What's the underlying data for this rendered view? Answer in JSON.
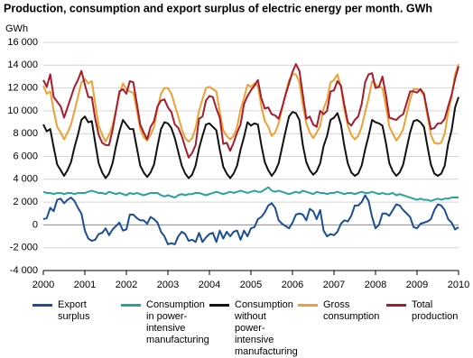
{
  "chart_data": {
    "type": "line",
    "title": "Production, consumption and export surplus of electric energy per month. GWh",
    "y_label": "GWh",
    "xlim": [
      2000,
      2010
    ],
    "xticks": [
      2000,
      2001,
      2002,
      2003,
      2004,
      2005,
      2006,
      2007,
      2008,
      2009,
      2010
    ],
    "ylim": [
      -4000,
      16000
    ],
    "yticks": [
      {
        "value": -4000,
        "label": "-4 000"
      },
      {
        "value": -2000,
        "label": "-2 000"
      },
      0,
      {
        "value": 2000,
        "label": "2 000"
      },
      {
        "value": 4000,
        "label": "4 000"
      },
      {
        "value": 6000,
        "label": "6 000"
      },
      {
        "value": 8000,
        "label": "8 000"
      },
      {
        "value": 10000,
        "label": "10 000"
      },
      {
        "value": 12000,
        "label": "12 000"
      },
      {
        "value": 14000,
        "label": "14 000"
      },
      {
        "value": 16000,
        "label": "16 000"
      }
    ],
    "grid": true,
    "x": [
      2000,
      2000.083,
      2000.167,
      2000.25,
      2000.333,
      2000.417,
      2000.5,
      2000.583,
      2000.667,
      2000.75,
      2000.833,
      2000.917,
      2001,
      2001.083,
      2001.167,
      2001.25,
      2001.333,
      2001.417,
      2001.5,
      2001.583,
      2001.667,
      2001.75,
      2001.833,
      2001.917,
      2002,
      2002.083,
      2002.167,
      2002.25,
      2002.333,
      2002.417,
      2002.5,
      2002.583,
      2002.667,
      2002.75,
      2002.833,
      2002.917,
      2003,
      2003.083,
      2003.167,
      2003.25,
      2003.333,
      2003.417,
      2003.5,
      2003.583,
      2003.667,
      2003.75,
      2003.833,
      2003.917,
      2004,
      2004.083,
      2004.167,
      2004.25,
      2004.333,
      2004.417,
      2004.5,
      2004.583,
      2004.667,
      2004.75,
      2004.833,
      2004.917,
      2005,
      2005.083,
      2005.167,
      2005.25,
      2005.333,
      2005.417,
      2005.5,
      2005.583,
      2005.667,
      2005.75,
      2005.833,
      2005.917,
      2006,
      2006.083,
      2006.167,
      2006.25,
      2006.333,
      2006.417,
      2006.5,
      2006.583,
      2006.667,
      2006.75,
      2006.833,
      2006.917,
      2007,
      2007.083,
      2007.167,
      2007.25,
      2007.333,
      2007.417,
      2007.5,
      2007.583,
      2007.667,
      2007.75,
      2007.833,
      2007.917,
      2008,
      2008.083,
      2008.167,
      2008.25,
      2008.333,
      2008.417,
      2008.5,
      2008.583,
      2008.667,
      2008.75,
      2008.833,
      2008.917,
      2009,
      2009.083,
      2009.167,
      2009.25,
      2009.333,
      2009.417,
      2009.5,
      2009.583,
      2009.667,
      2009.75,
      2009.833,
      2009.917,
      2010
    ],
    "series": [
      {
        "name": "Export surplus",
        "color": "#1a4f96",
        "values": [
          500,
          600,
          1500,
          1200,
          2200,
          2300,
          1900,
          2200,
          2400,
          2100,
          1500,
          1000,
          -500,
          -1200,
          -1400,
          -1300,
          -800,
          -700,
          -300,
          -900,
          -400,
          -100,
          200,
          -500,
          -400,
          900,
          900,
          600,
          400,
          400,
          100,
          700,
          500,
          200,
          -600,
          -1000,
          -1700,
          -1600,
          -1700,
          -1000,
          -600,
          -800,
          -1400,
          -1300,
          -1500,
          -700,
          -1500,
          -1100,
          -800,
          -700,
          -1500,
          -500,
          -1200,
          -600,
          -1000,
          -600,
          -500,
          -1300,
          -500,
          -1000,
          -300,
          -200,
          500,
          700,
          1100,
          1700,
          1900,
          1500,
          400,
          100,
          -100,
          -300,
          200,
          900,
          1000,
          900,
          400,
          1400,
          1200,
          500,
          1300,
          -500,
          -1000,
          -800,
          -900,
          -600,
          100,
          400,
          300,
          800,
          1700,
          1700,
          2000,
          2600,
          2100,
          700,
          -300,
          0,
          1000,
          1000,
          800,
          1300,
          1800,
          1700,
          1300,
          1000,
          700,
          -200,
          -300,
          100,
          200,
          300,
          500,
          1300,
          1800,
          1700,
          1300,
          500,
          200,
          -400,
          -200
        ]
      },
      {
        "name": "Consumption in power-intensive manufacturing",
        "color": "#2aa39a",
        "values": [
          2900,
          2800,
          2800,
          2700,
          2800,
          2800,
          2700,
          2800,
          2800,
          2700,
          2800,
          2800,
          2800,
          2900,
          3000,
          2900,
          2800,
          2800,
          2700,
          2900,
          2800,
          2700,
          2800,
          2700,
          2600,
          2800,
          2700,
          2800,
          2700,
          2600,
          2700,
          2800,
          2800,
          2800,
          2600,
          2500,
          2600,
          2500,
          2400,
          2600,
          2700,
          2600,
          2700,
          2700,
          2800,
          2800,
          2700,
          2600,
          2700,
          2800,
          2900,
          2800,
          2700,
          2800,
          2900,
          2800,
          2900,
          3000,
          2900,
          2800,
          2900,
          3000,
          2900,
          2900,
          3100,
          3300,
          3000,
          2900,
          3000,
          2900,
          2800,
          2700,
          2800,
          2900,
          2800,
          3000,
          2900,
          2800,
          2700,
          2900,
          2800,
          2800,
          2700,
          2800,
          2800,
          2900,
          2800,
          2700,
          2800,
          2800,
          2700,
          2800,
          2900,
          2800,
          2800,
          2900,
          2800,
          2700,
          2800,
          2700,
          2700,
          2800,
          2600,
          2700,
          2600,
          2500,
          2400,
          2300,
          2200,
          2300,
          2200,
          2200,
          2100,
          2200,
          2300,
          2200,
          2300,
          2300,
          2400,
          2400,
          2400
        ]
      },
      {
        "name": "Consumption without power-intensive manufacturing",
        "color": "#111111",
        "values": [
          8800,
          8200,
          8400,
          6800,
          5300,
          4800,
          4300,
          4800,
          5500,
          6800,
          7900,
          9200,
          9500,
          9000,
          9100,
          7200,
          5400,
          4600,
          4100,
          4500,
          5400,
          6900,
          8200,
          9200,
          8800,
          8400,
          8400,
          6800,
          5200,
          4600,
          4200,
          4600,
          5300,
          6900,
          8400,
          9000,
          8900,
          8500,
          7600,
          6400,
          5200,
          4500,
          4100,
          4400,
          5200,
          6700,
          7800,
          8800,
          8900,
          8600,
          8300,
          6600,
          5100,
          4500,
          4100,
          4500,
          5200,
          6600,
          7700,
          9000,
          8700,
          8900,
          8800,
          7000,
          5500,
          4800,
          4300,
          4700,
          5400,
          6800,
          8200,
          9500,
          9900,
          9800,
          9200,
          7000,
          5500,
          4800,
          4400,
          4700,
          5400,
          6900,
          7800,
          9200,
          9400,
          9800,
          8800,
          6900,
          5400,
          4600,
          4300,
          4500,
          5200,
          6600,
          7800,
          9200,
          9000,
          8900,
          8700,
          7200,
          5400,
          4700,
          4300,
          4600,
          5300,
          6700,
          8100,
          9100,
          9200,
          9000,
          8600,
          6900,
          5300,
          4500,
          4300,
          4500,
          5200,
          7100,
          8300,
          10300,
          11200
        ]
      },
      {
        "name": "Gross consumption",
        "color": "#f0a032",
        "values": [
          12200,
          11500,
          11700,
          10000,
          8600,
          8100,
          7500,
          8100,
          8800,
          10000,
          11200,
          12500,
          12800,
          12400,
          12600,
          10600,
          8700,
          7900,
          7300,
          7900,
          8700,
          10100,
          11500,
          12400,
          11900,
          11700,
          11600,
          10100,
          8400,
          7700,
          7400,
          7900,
          8600,
          10200,
          11500,
          12000,
          12000,
          11500,
          10500,
          9500,
          8400,
          7600,
          7300,
          7600,
          8500,
          10000,
          11000,
          12000,
          12100,
          11900,
          11700,
          9900,
          8300,
          7800,
          7500,
          7800,
          8600,
          10100,
          11100,
          12300,
          12100,
          12400,
          12200,
          10400,
          9100,
          8600,
          7800,
          8100,
          8900,
          10200,
          11500,
          12700,
          13200,
          13200,
          12500,
          10500,
          8900,
          8100,
          7600,
          8100,
          8700,
          10200,
          11000,
          12500,
          12700,
          13200,
          12100,
          10100,
          8700,
          7900,
          7500,
          7800,
          8600,
          9900,
          11100,
          12600,
          12300,
          12100,
          12000,
          10400,
          8600,
          8000,
          7400,
          7800,
          8400,
          9700,
          11000,
          11900,
          11900,
          11800,
          11300,
          9600,
          7900,
          7200,
          7100,
          7200,
          8000,
          9900,
          11200,
          13200,
          14100
        ]
      },
      {
        "name": "Total production",
        "color": "#a51d2d",
        "values": [
          12700,
          12100,
          13200,
          11200,
          10800,
          10400,
          9400,
          10300,
          11200,
          12100,
          12700,
          13500,
          12300,
          11200,
          11200,
          9300,
          7900,
          7200,
          7000,
          7000,
          8300,
          10000,
          11700,
          11900,
          11500,
          12600,
          12500,
          10700,
          8800,
          8100,
          7500,
          8600,
          9100,
          10400,
          10900,
          11000,
          10300,
          9900,
          8800,
          8500,
          7800,
          6800,
          5900,
          6300,
          7000,
          9300,
          9500,
          10900,
          11300,
          11200,
          10200,
          9400,
          7100,
          7200,
          6500,
          7200,
          8100,
          8800,
          10600,
          11300,
          11800,
          12200,
          12700,
          11100,
          10200,
          10300,
          9700,
          9600,
          9300,
          10300,
          11400,
          12400,
          13400,
          14100,
          13500,
          11400,
          9300,
          9500,
          8800,
          8600,
          10000,
          9700,
          10000,
          11700,
          11800,
          12600,
          12200,
          10500,
          9000,
          8700,
          9200,
          9500,
          10600,
          12500,
          13200,
          13300,
          12000,
          12100,
          13000,
          11400,
          9400,
          9300,
          9200,
          9500,
          9700,
          10700,
          11700,
          11700,
          11600,
          11900,
          11500,
          9900,
          8400,
          8500,
          8900,
          8900,
          9300,
          10400,
          11400,
          12800,
          13900
        ]
      }
    ]
  }
}
